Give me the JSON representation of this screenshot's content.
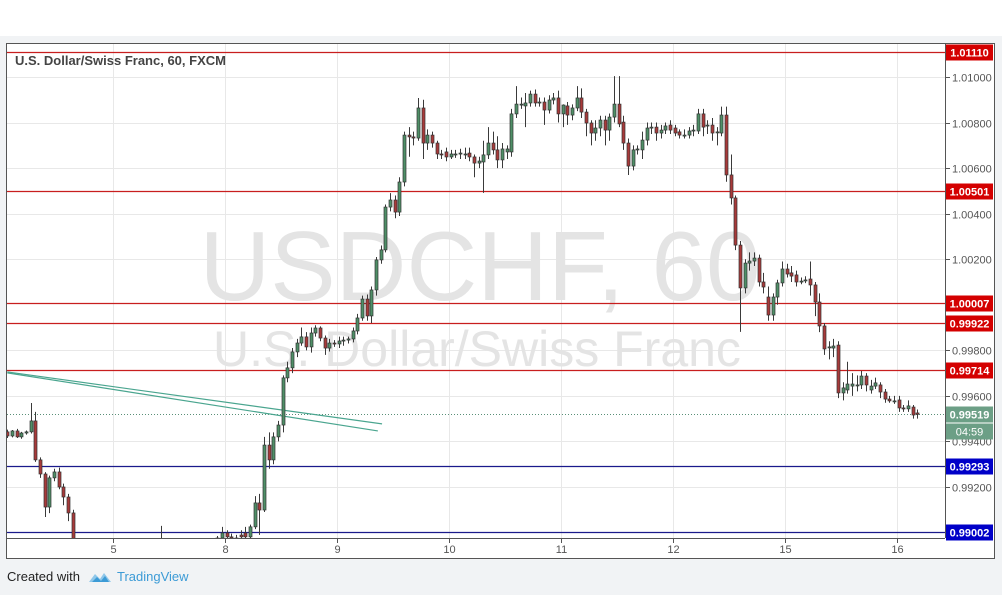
{
  "chart_data": {
    "type": "candlestick",
    "title": "U.S. Dollar/Swiss Franc, 60, FXCM",
    "watermark": {
      "symbol": "USDCHF, 60",
      "name": "U.S. Dollar/Swiss Franc"
    },
    "ylim": [
      0.98976,
      1.01165
    ],
    "yticks": [
      "1.01000",
      "1.00800",
      "1.00600",
      "1.00400",
      "1.00200",
      "0.99800",
      "0.99600",
      "0.99400",
      "0.99200"
    ],
    "xticks": [
      {
        "label": "5",
        "bar": 22.6
      },
      {
        "label": "8",
        "bar": 46.6
      },
      {
        "label": "9",
        "bar": 70.6
      },
      {
        "label": "10",
        "bar": 94.6
      },
      {
        "label": "11",
        "bar": 118.6
      },
      {
        "label": "12",
        "bar": 142.6
      },
      {
        "label": "15",
        "bar": 166.6
      },
      {
        "label": "16",
        "bar": 190.6
      }
    ],
    "grid": true,
    "colors": {
      "up": "#4f8f67",
      "down": "#a83a3a",
      "resistance": "#d40000",
      "support": "#0000c8",
      "trend": "#4aa58f",
      "current": "#6c9f86"
    },
    "horizontal_levels": [
      {
        "label": "1.01110",
        "value": 1.0111,
        "kind": "resistance"
      },
      {
        "label": "1.00501",
        "value": 1.00501,
        "kind": "resistance"
      },
      {
        "label": "1.00007",
        "value": 1.00007,
        "kind": "resistance"
      },
      {
        "label": "0.99922",
        "value": 0.99922,
        "kind": "resistance"
      },
      {
        "label": "0.99714",
        "value": 0.99714,
        "kind": "resistance"
      },
      {
        "label": "0.99293",
        "value": 0.99293,
        "kind": "support"
      },
      {
        "label": "0.99002",
        "value": 0.99002,
        "kind": "support"
      }
    ],
    "current_price": {
      "label": "0.99519",
      "value": 0.99519,
      "countdown": "04:59"
    },
    "trend_lines": [
      {
        "from": [
          0,
          0.99705
        ],
        "to": [
          80.3,
          0.99477
        ]
      },
      {
        "from": [
          0,
          0.99701
        ],
        "to": [
          79.4,
          0.99446
        ]
      }
    ],
    "candles_ohlc": [
      [
        0.99442,
        0.99452,
        0.99415,
        0.99424
      ],
      [
        0.99424,
        0.9945,
        0.99418,
        0.99446
      ],
      [
        0.99446,
        0.99455,
        0.99415,
        0.9942
      ],
      [
        0.9942,
        0.99442,
        0.99412,
        0.99437
      ],
      [
        0.99437,
        0.99448,
        0.9943,
        0.99442
      ],
      [
        0.99442,
        0.99569,
        0.99435,
        0.9949
      ],
      [
        0.9949,
        0.9953,
        0.9931,
        0.99319
      ],
      [
        0.99319,
        0.9933,
        0.9924,
        0.99257
      ],
      [
        0.99257,
        0.99265,
        0.99068,
        0.99112
      ],
      [
        0.99112,
        0.9925,
        0.99085,
        0.9924
      ],
      [
        0.9924,
        0.9928,
        0.99225,
        0.99266
      ],
      [
        0.99266,
        0.99285,
        0.9919,
        0.992
      ],
      [
        0.992,
        0.99215,
        0.9912,
        0.99156
      ],
      [
        0.99156,
        0.9917,
        0.9905,
        0.99086
      ],
      [
        0.99086,
        0.991,
        0.9892,
        0.98946
      ],
      [
        0.98946,
        0.9896,
        0.9887,
        0.9888
      ],
      [
        0.9888,
        0.989,
        0.9882,
        0.98836
      ],
      [
        0.98836,
        0.9887,
        0.9882,
        0.9886
      ],
      [
        0.9886,
        0.9888,
        0.9883,
        0.98845
      ],
      [
        0.98845,
        0.9887,
        0.98835,
        0.98858
      ],
      [
        0.98858,
        0.98875,
        0.9884,
        0.9885
      ],
      [
        0.9885,
        0.9887,
        0.9883,
        0.98862
      ],
      [
        0.98862,
        0.9889,
        0.9885,
        0.9888
      ],
      [
        0.9888,
        0.989,
        0.9886,
        0.9887
      ],
      [
        0.9887,
        0.98885,
        0.9885,
        0.98858
      ],
      [
        0.98858,
        0.9888,
        0.98845,
        0.98872
      ],
      [
        0.98872,
        0.98895,
        0.9886,
        0.98885
      ],
      [
        0.98885,
        0.98905,
        0.9887,
        0.98878
      ],
      [
        0.98878,
        0.989,
        0.98865,
        0.9889
      ],
      [
        0.9889,
        0.9891,
        0.98875,
        0.98895
      ],
      [
        0.98895,
        0.98915,
        0.9888,
        0.98888
      ],
      [
        0.98888,
        0.9892,
        0.9888,
        0.9891
      ],
      [
        0.9891,
        0.9893,
        0.9889,
        0.98902
      ],
      [
        0.98902,
        0.99029,
        0.98895,
        0.98924
      ],
      [
        0.98924,
        0.98976,
        0.989,
        0.98915
      ],
      [
        0.98915,
        0.9893,
        0.9889,
        0.989
      ],
      [
        0.989,
        0.9892,
        0.9888,
        0.9889
      ],
      [
        0.9889,
        0.98905,
        0.9887,
        0.9888
      ],
      [
        0.9888,
        0.989,
        0.98865,
        0.98892
      ],
      [
        0.98892,
        0.9891,
        0.9888,
        0.989
      ],
      [
        0.989,
        0.98915,
        0.98885,
        0.98895
      ],
      [
        0.98895,
        0.9892,
        0.98885,
        0.9891
      ],
      [
        0.9891,
        0.9893,
        0.98895,
        0.9892
      ],
      [
        0.9892,
        0.9894,
        0.9891,
        0.9893
      ],
      [
        0.9893,
        0.9895,
        0.9892,
        0.98946
      ],
      [
        0.98946,
        0.98985,
        0.98935,
        0.98976
      ],
      [
        0.98976,
        0.99025,
        0.98965,
        0.98998
      ],
      [
        0.98998,
        0.9901,
        0.9897,
        0.98981
      ],
      [
        0.98981,
        0.98995,
        0.98965,
        0.98976
      ],
      [
        0.98976,
        0.9899,
        0.98955,
        0.98967
      ],
      [
        0.98989,
        0.9901,
        0.9897,
        0.98981
      ],
      [
        0.98998,
        0.99025,
        0.98975,
        0.98981
      ],
      [
        0.98981,
        0.99035,
        0.98975,
        0.99025
      ],
      [
        0.99025,
        0.9916,
        0.99015,
        0.9913
      ],
      [
        0.9913,
        0.9917,
        0.9899,
        0.99099
      ],
      [
        0.99099,
        0.9942,
        0.9909,
        0.99384
      ],
      [
        0.99384,
        0.9944,
        0.9928,
        0.99319
      ],
      [
        0.99319,
        0.9944,
        0.993,
        0.9942
      ],
      [
        0.9942,
        0.9949,
        0.994,
        0.99472
      ],
      [
        0.99472,
        0.9969,
        0.9944,
        0.99679
      ],
      [
        0.99679,
        0.9975,
        0.9966,
        0.99723
      ],
      [
        0.99723,
        0.9981,
        0.997,
        0.99793
      ],
      [
        0.99793,
        0.9985,
        0.9977,
        0.99832
      ],
      [
        0.99832,
        0.999,
        0.9982,
        0.99859
      ],
      [
        0.99859,
        0.9988,
        0.998,
        0.99815
      ],
      [
        0.99815,
        0.999,
        0.9979,
        0.99876
      ],
      [
        0.99876,
        0.9991,
        0.9986,
        0.99898
      ],
      [
        0.99898,
        0.99905,
        0.9984,
        0.99854
      ],
      [
        0.99854,
        0.99865,
        0.9978,
        0.9981
      ],
      [
        0.9981,
        0.9985,
        0.99795,
        0.99832
      ],
      [
        0.99832,
        0.99845,
        0.99815,
        0.9983
      ],
      [
        0.99828,
        0.9986,
        0.9981,
        0.99841
      ],
      [
        0.99841,
        0.9986,
        0.9982,
        0.99845
      ],
      [
        0.99845,
        0.9986,
        0.9983,
        0.9985
      ],
      [
        0.9985,
        0.999,
        0.99835,
        0.99885
      ],
      [
        0.99885,
        0.9996,
        0.9987,
        0.99942
      ],
      [
        0.99942,
        1.0004,
        0.9993,
        1.00025
      ],
      [
        1.00025,
        1.00045,
        0.9993,
        0.99951
      ],
      [
        0.99951,
        1.0008,
        0.9992,
        1.00065
      ],
      [
        1.00065,
        1.0021,
        1.0004,
        1.00197
      ],
      [
        1.00197,
        1.0026,
        1.0018,
        1.00241
      ],
      [
        1.00241,
        1.0044,
        1.0023,
        1.00429
      ],
      [
        1.00429,
        1.0049,
        1.0041,
        1.0046
      ],
      [
        1.0046,
        1.0048,
        1.0038,
        1.00407
      ],
      [
        1.00407,
        1.0056,
        1.0039,
        1.00539
      ],
      [
        1.00539,
        1.0076,
        1.0052,
        1.00745
      ],
      [
        1.00745,
        1.0078,
        1.0065,
        1.00737
      ],
      [
        1.00737,
        1.0076,
        1.007,
        1.00732
      ],
      [
        1.00732,
        1.00908,
        1.0072,
        1.00864
      ],
      [
        1.00864,
        1.009,
        1.0064,
        1.0071
      ],
      [
        1.0071,
        1.0077,
        1.0068,
        1.00745
      ],
      [
        1.00745,
        1.0076,
        1.0069,
        1.0071
      ],
      [
        1.0071,
        1.0072,
        1.0064,
        1.00662
      ],
      [
        1.00662,
        1.0068,
        1.0064,
        1.00658
      ],
      [
        1.00671,
        1.0069,
        1.0063,
        1.00649
      ],
      [
        1.00649,
        1.0068,
        1.0064,
        1.00662
      ],
      [
        1.00662,
        1.0068,
        1.00645,
        1.00662
      ],
      [
        1.00666,
        1.00685,
        1.0064,
        1.00666
      ],
      [
        1.00662,
        1.0069,
        1.0064,
        1.00662
      ],
      [
        1.00666,
        1.0069,
        1.0063,
        1.00649
      ],
      [
        1.00649,
        1.0066,
        1.0056,
        1.00622
      ],
      [
        1.00622,
        1.0065,
        1.006,
        1.00631
      ],
      [
        1.00627,
        1.0072,
        1.00491,
        1.00658
      ],
      [
        1.00658,
        1.0078,
        1.0064,
        1.0071
      ],
      [
        1.0071,
        1.0076,
        1.0066,
        1.0068
      ],
      [
        1.0068,
        1.0074,
        1.006,
        1.00636
      ],
      [
        1.00636,
        1.0071,
        1.006,
        1.00684
      ],
      [
        1.00671,
        1.007,
        1.0064,
        1.00684
      ],
      [
        1.00671,
        1.0086,
        1.0065,
        1.00838
      ],
      [
        1.00838,
        1.0096,
        1.0082,
        1.00881
      ],
      [
        1.00881,
        1.0091,
        1.0086,
        1.00881
      ],
      [
        1.00873,
        1.0093,
        1.0078,
        1.00886
      ],
      [
        1.00886,
        1.0094,
        1.0087,
        1.00925
      ],
      [
        1.00925,
        1.00945,
        1.0087,
        1.00886
      ],
      [
        1.0089,
        1.0091,
        1.0087,
        1.0089
      ],
      [
        1.0089,
        1.0091,
        1.0079,
        1.00855
      ],
      [
        1.00855,
        1.0092,
        1.0084,
        1.00899
      ],
      [
        1.00899,
        1.0093,
        1.0088,
        1.00908
      ],
      [
        1.00908,
        1.0094,
        1.008,
        1.00838
      ],
      [
        1.00838,
        1.0088,
        1.0078,
        1.00877
      ],
      [
        1.00873,
        1.0089,
        1.0079,
        1.00833
      ],
      [
        1.00833,
        1.0088,
        1.0081,
        1.00864
      ],
      [
        1.00864,
        1.0096,
        1.0085,
        1.00908
      ],
      [
        1.00908,
        1.0095,
        1.0082,
        1.00846
      ],
      [
        1.00846,
        1.0086,
        1.0074,
        1.00798
      ],
      [
        1.00798,
        1.0081,
        1.007,
        1.00754
      ],
      [
        1.00754,
        1.0081,
        1.0072,
        1.00776
      ],
      [
        1.00776,
        1.0083,
        1.0074,
        1.00811
      ],
      [
        1.00811,
        1.0083,
        1.007,
        1.00767
      ],
      [
        1.00767,
        1.0084,
        1.0072,
        1.00824
      ],
      [
        1.00824,
        1.01004,
        1.008,
        1.00881
      ],
      [
        1.00881,
        1.01004,
        1.0078,
        1.00794
      ],
      [
        1.00802,
        1.0083,
        1.0068,
        1.0071
      ],
      [
        1.0071,
        1.0073,
        1.0057,
        1.00609
      ],
      [
        1.00609,
        1.007,
        1.0059,
        1.0068
      ],
      [
        1.0068,
        1.007,
        1.0066,
        1.00684
      ],
      [
        1.0068,
        1.0076,
        1.0064,
        1.00723
      ],
      [
        1.00723,
        1.008,
        1.007,
        1.00776
      ],
      [
        1.00776,
        1.008,
        1.0075,
        1.0078
      ],
      [
        1.0078,
        1.008,
        1.0072,
        1.00754
      ],
      [
        1.00754,
        1.0079,
        1.0073,
        1.00767
      ],
      [
        1.00767,
        1.008,
        1.0075,
        1.00785
      ],
      [
        1.00789,
        1.0081,
        1.0075,
        1.00767
      ],
      [
        1.00776,
        1.0079,
        1.0074,
        1.00754
      ],
      [
        1.00759,
        1.0077,
        1.0073,
        1.00745
      ],
      [
        1.00745,
        1.0077,
        1.0073,
        1.00745
      ],
      [
        1.00745,
        1.0078,
        1.0073,
        1.00763
      ],
      [
        1.00763,
        1.0079,
        1.0074,
        1.00767
      ],
      [
        1.00763,
        1.0086,
        1.0075,
        1.00838
      ],
      [
        1.00838,
        1.0086,
        1.0074,
        1.0078
      ],
      [
        1.00785,
        1.0081,
        1.0075,
        1.00789
      ],
      [
        1.00789,
        1.0082,
        1.0072,
        1.00754
      ],
      [
        1.00759,
        1.0078,
        1.007,
        1.00759
      ],
      [
        1.00754,
        1.0087,
        1.0074,
        1.00833
      ],
      [
        1.00833,
        1.0087,
        1.0054,
        1.0057
      ],
      [
        1.0057,
        1.0066,
        1.0044,
        1.00469
      ],
      [
        1.00469,
        1.0048,
        1.0024,
        1.00262
      ],
      [
        1.00262,
        1.0028,
        0.99881,
        1.00074
      ],
      [
        1.00074,
        1.002,
        1.0005,
        1.00183
      ],
      [
        1.00183,
        1.0023,
        1.0015,
        1.00192
      ],
      [
        1.00192,
        1.0023,
        1.0017,
        1.00205
      ],
      [
        1.00205,
        1.0022,
        1.0008,
        1.001
      ],
      [
        1.001,
        1.0014,
        1.0005,
        1.00078
      ],
      [
        1.00034,
        1.0008,
        0.9993,
        0.99955
      ],
      [
        0.99955,
        1.0005,
        0.9993,
        1.00034
      ],
      [
        1.00034,
        1.0011,
        1.0,
        1.00096
      ],
      [
        1.00096,
        1.0019,
        1.0008,
        1.00157
      ],
      [
        1.00157,
        1.0018,
        1.0012,
        1.00135
      ],
      [
        1.0014,
        1.0017,
        1.001,
        1.00126
      ],
      [
        1.00131,
        1.0015,
        1.0008,
        1.001
      ],
      [
        1.00104,
        1.0012,
        1.0009,
        1.00104
      ],
      [
        1.00109,
        1.00125,
        1.00095,
        1.00109
      ],
      [
        1.00113,
        1.0019,
        1.0004,
        1.00087
      ],
      [
        1.00087,
        1.001,
        0.9995,
        1.00012
      ],
      [
        1.00012,
        1.0005,
        0.9988,
        0.99907
      ],
      [
        0.99907,
        0.9992,
        0.9978,
        0.99806
      ],
      [
        0.99815,
        0.9984,
        0.9976,
        0.99815
      ],
      [
        0.9981,
        0.9985,
        0.9977,
        0.99819
      ],
      [
        0.99823,
        0.9984,
        0.9959,
        0.99613
      ],
      [
        0.99613,
        0.9966,
        0.9958,
        0.99635
      ],
      [
        0.99626,
        0.9975,
        0.9961,
        0.99652
      ],
      [
        0.99643,
        0.997,
        0.996,
        0.99652
      ],
      [
        0.99648,
        0.9969,
        0.9962,
        0.99648
      ],
      [
        0.99648,
        0.9971,
        0.9963,
        0.99687
      ],
      [
        0.99687,
        0.997,
        0.9962,
        0.99648
      ],
      [
        0.99626,
        0.9967,
        0.9961,
        0.99643
      ],
      [
        0.99643,
        0.9968,
        0.9963,
        0.99657
      ],
      [
        0.99648,
        0.9966,
        0.9959,
        0.99617
      ],
      [
        0.99617,
        0.9963,
        0.9957,
        0.99586
      ],
      [
        0.99586,
        0.996,
        0.9957,
        0.99578
      ],
      [
        0.99578,
        0.996,
        0.99565,
        0.99578
      ],
      [
        0.99582,
        0.996,
        0.9953,
        0.99547
      ],
      [
        0.99547,
        0.9956,
        0.9953,
        0.99543
      ],
      [
        0.99543,
        0.9958,
        0.9953,
        0.99556
      ],
      [
        0.99551,
        0.9956,
        0.995,
        0.99516
      ],
      [
        0.99525,
        0.9954,
        0.995,
        0.99519
      ]
    ]
  },
  "footer": {
    "created_with": "Created with",
    "brand": "TradingView"
  }
}
